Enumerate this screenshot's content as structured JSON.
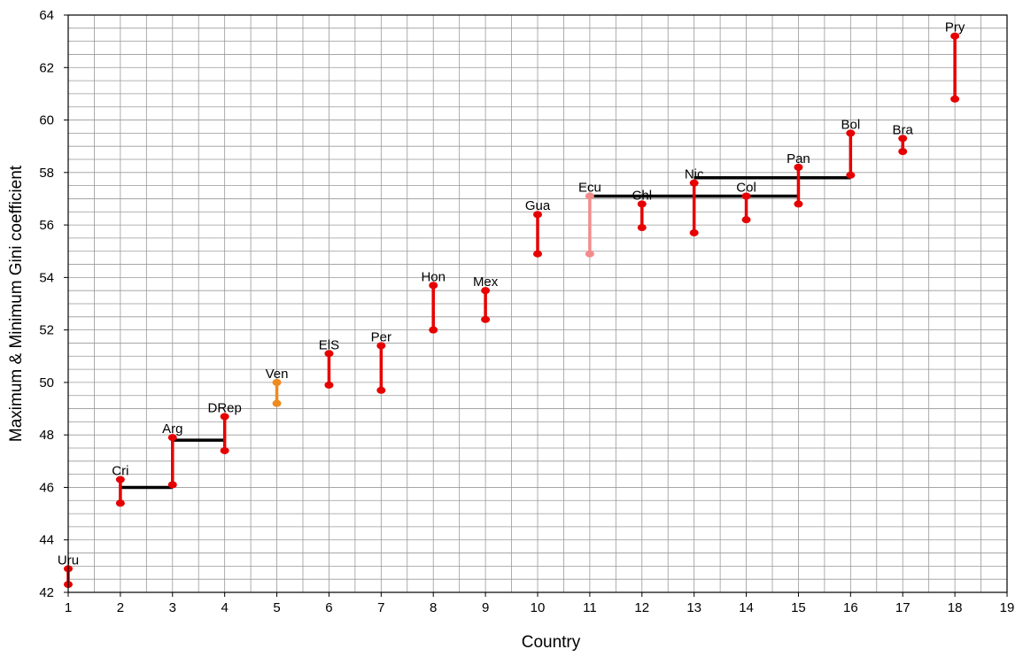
{
  "chart_data": {
    "type": "range",
    "xlabel": "Country",
    "ylabel": "Maximum & Minimum Gini coefficient",
    "xlim": [
      1,
      19
    ],
    "ylim": [
      42,
      64
    ],
    "x_ticks": [
      1,
      2,
      3,
      4,
      5,
      6,
      7,
      8,
      9,
      10,
      11,
      12,
      13,
      14,
      15,
      16,
      17,
      18,
      19
    ],
    "y_ticks": [
      42,
      44,
      46,
      48,
      50,
      52,
      54,
      56,
      58,
      60,
      62,
      64
    ],
    "grid": true,
    "colors": {
      "default": "#e60000",
      "Ven": "#f08a1e",
      "Ecu": "#f28c8c",
      "bracket": "#000000",
      "grid": "#999999"
    },
    "series": [
      {
        "label": "Uru",
        "x": 1,
        "max": 42.9,
        "min": 42.3
      },
      {
        "label": "Cri",
        "x": 2,
        "max": 46.3,
        "min": 45.4
      },
      {
        "label": "Arg",
        "x": 3,
        "max": 47.9,
        "min": 46.1
      },
      {
        "label": "DRep",
        "x": 4,
        "max": 48.7,
        "min": 47.4
      },
      {
        "label": "Ven",
        "x": 5,
        "max": 50.0,
        "min": 49.2
      },
      {
        "label": "ElS",
        "x": 6,
        "max": 51.1,
        "min": 49.9
      },
      {
        "label": "Per",
        "x": 7,
        "max": 51.4,
        "min": 49.7
      },
      {
        "label": "Hon",
        "x": 8,
        "max": 53.7,
        "min": 52.0
      },
      {
        "label": "Mex",
        "x": 9,
        "max": 53.5,
        "min": 52.4
      },
      {
        "label": "Gua",
        "x": 10,
        "max": 56.4,
        "min": 54.9
      },
      {
        "label": "Ecu",
        "x": 11,
        "max": 57.1,
        "min": 54.9
      },
      {
        "label": "Chl",
        "x": 12,
        "max": 56.8,
        "min": 55.9
      },
      {
        "label": "Nic",
        "x": 13,
        "max": 57.6,
        "min": 55.7
      },
      {
        "label": "Col",
        "x": 14,
        "max": 57.1,
        "min": 56.2
      },
      {
        "label": "Pan",
        "x": 15,
        "max": 58.2,
        "min": 56.8
      },
      {
        "label": "Bol",
        "x": 16,
        "max": 59.5,
        "min": 57.9
      },
      {
        "label": "Bra",
        "x": 17,
        "max": 59.3,
        "min": 58.8
      },
      {
        "label": "Pry",
        "x": 18,
        "max": 63.2,
        "min": 60.8
      }
    ],
    "brackets": [
      {
        "x1": 2,
        "x2": 3,
        "y": 46.0
      },
      {
        "x1": 3,
        "x2": 4,
        "y": 47.8
      },
      {
        "x1": 11,
        "x2": 15,
        "y": 57.1
      },
      {
        "x1": 13,
        "x2": 16,
        "y": 57.8
      }
    ]
  }
}
